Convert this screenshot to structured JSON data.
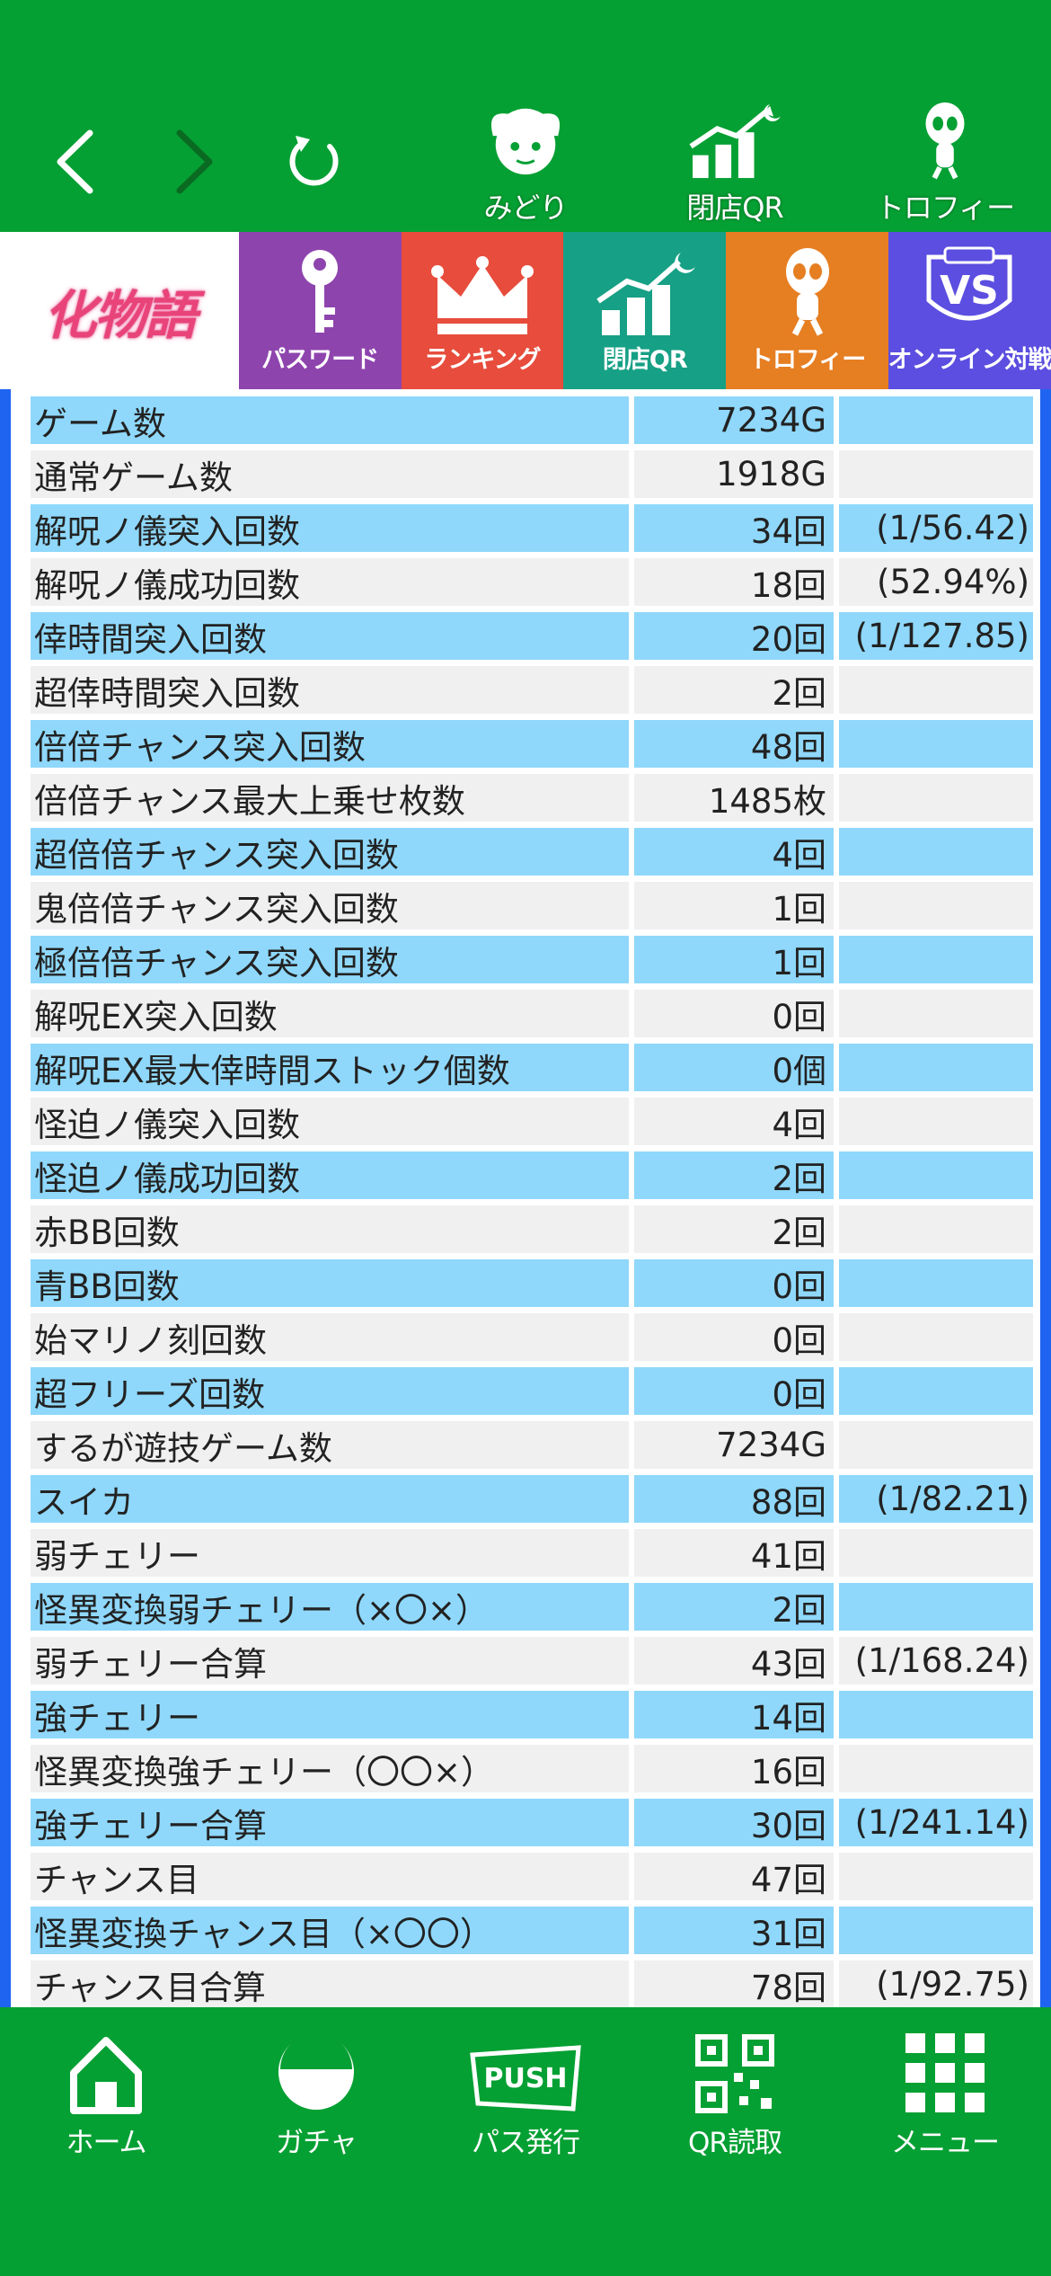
{
  "top_nav": {
    "items": [
      {
        "label": "みどり",
        "icon": "character-icon"
      },
      {
        "label": "閉店QR",
        "icon": "chart-up-icon"
      },
      {
        "label": "トロフィー",
        "icon": "alien-icon"
      }
    ]
  },
  "tabs": {
    "logo_text": "化物語",
    "items": [
      {
        "label": "パスワード",
        "color": "#8e44ad",
        "icon": "key-icon"
      },
      {
        "label": "ランキング",
        "color": "#e74c3c",
        "icon": "crown-icon"
      },
      {
        "label": "閉店QR",
        "color": "#16a085",
        "icon": "chart-up-icon"
      },
      {
        "label": "トロフィー",
        "color": "#e67e22",
        "icon": "alien-icon"
      },
      {
        "label": "オンライン対戦",
        "color": "#5b4ee0",
        "icon": "vs-icon"
      }
    ]
  },
  "stats": [
    {
      "name": "ゲーム数",
      "value": "7234G",
      "extra": ""
    },
    {
      "name": "通常ゲーム数",
      "value": "1918G",
      "extra": ""
    },
    {
      "name": "解呪ノ儀突入回数",
      "value": "34回",
      "extra": "(1/56.42)"
    },
    {
      "name": "解呪ノ儀成功回数",
      "value": "18回",
      "extra": "(52.94%)"
    },
    {
      "name": "倖時間突入回数",
      "value": "20回",
      "extra": "(1/127.85)"
    },
    {
      "name": "超倖時間突入回数",
      "value": "2回",
      "extra": ""
    },
    {
      "name": "倍倍チャンス突入回数",
      "value": "48回",
      "extra": ""
    },
    {
      "name": "倍倍チャンス最大上乗せ枚数",
      "value": "1485枚",
      "extra": ""
    },
    {
      "name": "超倍倍チャンス突入回数",
      "value": "4回",
      "extra": ""
    },
    {
      "name": "鬼倍倍チャンス突入回数",
      "value": "1回",
      "extra": ""
    },
    {
      "name": "極倍倍チャンス突入回数",
      "value": "1回",
      "extra": ""
    },
    {
      "name": "解呪EX突入回数",
      "value": "0回",
      "extra": ""
    },
    {
      "name": "解呪EX最大倖時間ストック個数",
      "value": "0個",
      "extra": ""
    },
    {
      "name": "怪迫ノ儀突入回数",
      "value": "4回",
      "extra": ""
    },
    {
      "name": "怪迫ノ儀成功回数",
      "value": "2回",
      "extra": ""
    },
    {
      "name": "赤BB回数",
      "value": "2回",
      "extra": ""
    },
    {
      "name": "青BB回数",
      "value": "0回",
      "extra": ""
    },
    {
      "name": "始マリノ刻回数",
      "value": "0回",
      "extra": ""
    },
    {
      "name": "超フリーズ回数",
      "value": "0回",
      "extra": ""
    },
    {
      "name": "するが遊技ゲーム数",
      "value": "7234G",
      "extra": ""
    },
    {
      "name": "スイカ",
      "value": "88回",
      "extra": "(1/82.21)"
    },
    {
      "name": "弱チェリー",
      "value": "41回",
      "extra": ""
    },
    {
      "name": "怪異変換弱チェリー（×〇×）",
      "value": "2回",
      "extra": ""
    },
    {
      "name": "弱チェリー合算",
      "value": "43回",
      "extra": "(1/168.24)"
    },
    {
      "name": "強チェリー",
      "value": "14回",
      "extra": ""
    },
    {
      "name": "怪異変換強チェリー（〇〇×）",
      "value": "16回",
      "extra": ""
    },
    {
      "name": "強チェリー合算",
      "value": "30回",
      "extra": "(1/241.14)"
    },
    {
      "name": "チャンス目",
      "value": "47回",
      "extra": ""
    },
    {
      "name": "怪異変換チャンス目（×〇〇）",
      "value": "31回",
      "extra": ""
    },
    {
      "name": "チャンス目合算",
      "value": "78回",
      "extra": "(1/92.75)"
    }
  ],
  "bottom_nav": {
    "items": [
      {
        "label": "ホーム",
        "icon": "home-icon"
      },
      {
        "label": "ガチャ",
        "icon": "gacha-icon"
      },
      {
        "label": "パス発行",
        "icon": "push-icon"
      },
      {
        "label": "QR読取",
        "icon": "qr-code-icon"
      },
      {
        "label": "メニュー",
        "icon": "grid-menu-icon"
      }
    ]
  },
  "colors": {
    "app_green": "#05a033",
    "row_blue": "#8fd8fb",
    "row_gray": "#f0f0f0",
    "border_blue": "#1f64f0"
  }
}
